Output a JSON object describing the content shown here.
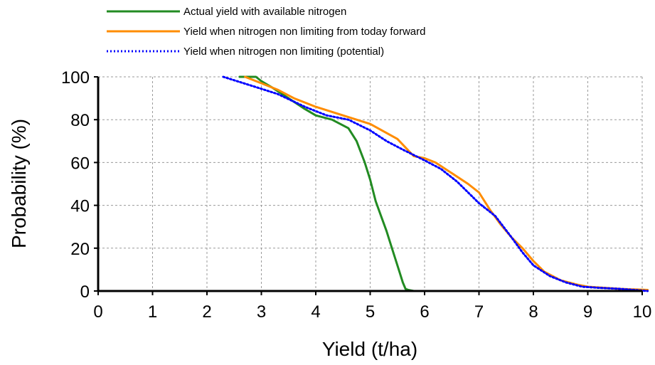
{
  "chart_data": {
    "type": "line",
    "title": "",
    "xlabel": "Yield (t/ha)",
    "ylabel": "Probability (%)",
    "xlim": [
      0,
      10
    ],
    "ylim": [
      0,
      100
    ],
    "xticks": [
      0,
      1,
      2,
      3,
      4,
      5,
      6,
      7,
      8,
      9,
      10
    ],
    "yticks": [
      0,
      20,
      40,
      60,
      80,
      100
    ],
    "grid": true,
    "legend_position": "top",
    "series": [
      {
        "name": "Actual yield with available nitrogen",
        "color": "#228b22",
        "dash": "solid",
        "x": [
          2.6,
          2.9,
          3.0,
          3.2,
          3.5,
          3.8,
          4.0,
          4.3,
          4.6,
          4.75,
          4.9,
          5.0,
          5.1,
          5.2,
          5.3,
          5.4,
          5.5,
          5.55,
          5.6,
          5.65,
          5.7,
          5.8
        ],
        "y": [
          100,
          100,
          98,
          95,
          90,
          85,
          82,
          80,
          76,
          70,
          60,
          52,
          42,
          35,
          28,
          20,
          12,
          8,
          4,
          1,
          0.5,
          0
        ]
      },
      {
        "name": "Yield when nitrogen non limiting from today forward",
        "color": "#ff8c00",
        "dash": "solid",
        "x": [
          2.7,
          3.0,
          3.3,
          3.6,
          4.0,
          4.5,
          5.0,
          5.5,
          5.8,
          6.0,
          6.2,
          6.5,
          6.8,
          7.0,
          7.2,
          7.4,
          7.6,
          7.8,
          8.0,
          8.2,
          8.5,
          8.8,
          9.0,
          9.3,
          9.6,
          10.1
        ],
        "y": [
          100,
          97,
          94,
          90,
          86,
          82,
          78,
          71,
          63,
          62,
          60,
          55,
          50,
          46,
          38,
          31,
          25,
          20,
          14,
          9,
          5,
          3,
          2,
          1.5,
          1,
          0.5
        ]
      },
      {
        "name": "Yield when nitrogen non limiting (potential)",
        "color": "#0000ff",
        "dash": "dotted",
        "x": [
          2.3,
          2.8,
          3.3,
          3.8,
          4.2,
          4.6,
          5.0,
          5.3,
          5.6,
          6.0,
          6.3,
          6.6,
          6.8,
          7.0,
          7.3,
          7.6,
          7.8,
          8.0,
          8.3,
          8.6,
          8.9,
          9.2,
          9.6,
          10.1
        ],
        "y": [
          100,
          96,
          92,
          86,
          82,
          80,
          75,
          70,
          66,
          61,
          57,
          51,
          46,
          41,
          35,
          25,
          18,
          12,
          7,
          4,
          2,
          1.5,
          1,
          0
        ]
      }
    ]
  }
}
